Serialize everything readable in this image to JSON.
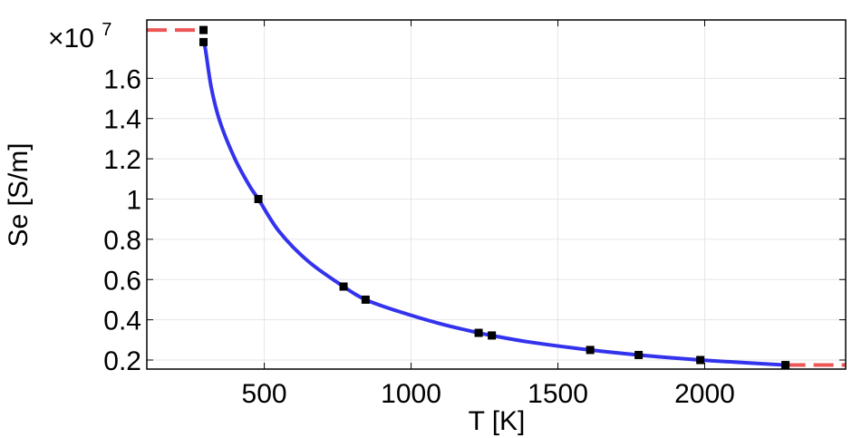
{
  "chart_data": {
    "type": "line",
    "xlabel": "T [K]",
    "ylabel": "Se [S/m]",
    "y_multiplier": {
      "base": "×10",
      "exponent": "7"
    },
    "xlim": [
      100,
      2480
    ],
    "ylim": [
      0.155,
      1.89
    ],
    "x_ticks": [
      500,
      1000,
      1500,
      2000
    ],
    "x_tick_labels": [
      "500",
      "1000",
      "1500",
      "2000"
    ],
    "y_ticks": [
      0.2,
      0.4,
      0.6,
      0.8,
      1.0,
      1.2,
      1.4,
      1.6
    ],
    "y_tick_labels": [
      "0.2",
      "0.4",
      "0.6",
      "0.8",
      "1",
      "1.2",
      "1.4",
      "1.6"
    ],
    "grid": true,
    "colors": {
      "curve": "#3333ee",
      "extrapolation": "#ee5555",
      "markers": "#000000",
      "grid": "#e6e6e6"
    },
    "series": [
      {
        "role": "fitted-curve",
        "style": "solid",
        "x": [
          293,
          300,
          320,
          350,
          400,
          450,
          480,
          550,
          650,
          770,
          845,
          950,
          1100,
          1230,
          1275,
          1400,
          1610,
          1775,
          1985,
          2100,
          2275
        ],
        "y": [
          1.78,
          1.74,
          1.55,
          1.38,
          1.2,
          1.065,
          1.0,
          0.84,
          0.69,
          0.565,
          0.5,
          0.445,
          0.38,
          0.335,
          0.322,
          0.29,
          0.25,
          0.225,
          0.2,
          0.19,
          0.175
        ]
      },
      {
        "role": "extrapolation-left",
        "style": "dashed",
        "x": [
          100,
          293
        ],
        "y": [
          1.84,
          1.84
        ]
      },
      {
        "role": "extrapolation-right",
        "style": "dashed",
        "x": [
          2275,
          2480
        ],
        "y": [
          0.175,
          0.175
        ]
      },
      {
        "role": "data-points",
        "style": "markers",
        "x": [
          293,
          293,
          480,
          770,
          845,
          1230,
          1275,
          1610,
          1775,
          1985,
          2275
        ],
        "y": [
          1.84,
          1.78,
          1.0,
          0.565,
          0.5,
          0.335,
          0.322,
          0.25,
          0.225,
          0.2,
          0.175
        ]
      }
    ]
  }
}
